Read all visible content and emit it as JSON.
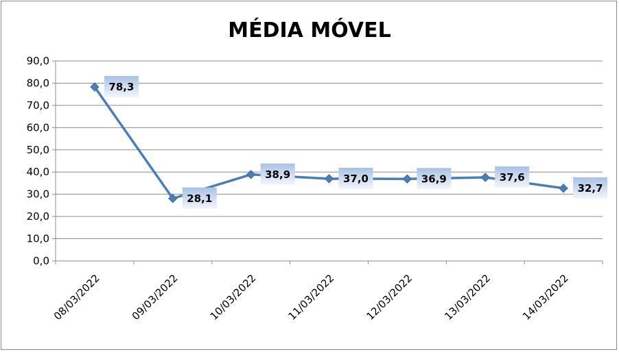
{
  "chart_data": {
    "type": "line",
    "title": "MÉDIA MÓVEL",
    "categories": [
      "08/03/2022",
      "09/03/2022",
      "10/03/2022",
      "11/03/2022",
      "12/03/2022",
      "13/03/2022",
      "14/03/2022"
    ],
    "series": [
      {
        "values": [
          78.3,
          28.1,
          38.9,
          37.0,
          36.9,
          37.6,
          32.7
        ],
        "labels": [
          "78,3",
          "28,1",
          "38,9",
          "37,0",
          "36,9",
          "37,6",
          "32,7"
        ],
        "color": "#4a7ebb",
        "marker": "diamond"
      }
    ],
    "y_ticks": [
      "0,0",
      "10,0",
      "20,0",
      "30,0",
      "40,0",
      "50,0",
      "60,0",
      "70,0",
      "80,0",
      "90,0"
    ],
    "ylim": [
      0,
      90
    ],
    "grid": true,
    "legend": "none",
    "xlabel": "",
    "ylabel": ""
  }
}
